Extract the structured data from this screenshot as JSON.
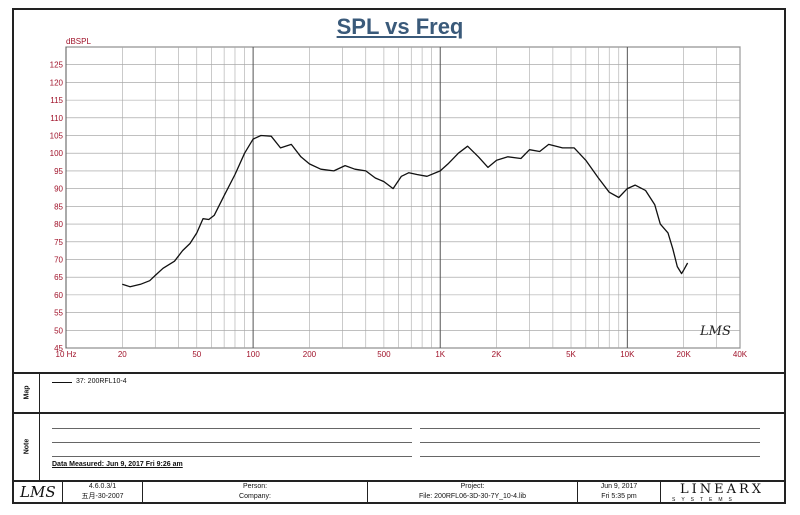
{
  "title": "SPL vs Freq",
  "chart_data": {
    "type": "line",
    "ylabel": "dBSPL",
    "xscale": "log",
    "xlim": [
      10,
      40000
    ],
    "ylim": [
      45,
      130
    ],
    "grid": true,
    "yticks": [
      "45",
      "50",
      "55",
      "60",
      "65",
      "70",
      "75",
      "80",
      "85",
      "90",
      "95",
      "100",
      "105",
      "110",
      "115",
      "120",
      "125"
    ],
    "xtick_labels": [
      {
        "f": 10,
        "label": "10 Hz"
      },
      {
        "f": 20,
        "label": "20"
      },
      {
        "f": 50,
        "label": "50"
      },
      {
        "f": 100,
        "label": "100"
      },
      {
        "f": 200,
        "label": "200"
      },
      {
        "f": 500,
        "label": "500"
      },
      {
        "f": 1000,
        "label": "1K"
      },
      {
        "f": 2000,
        "label": "2K"
      },
      {
        "f": 5000,
        "label": "5K"
      },
      {
        "f": 10000,
        "label": "10K"
      },
      {
        "f": 20000,
        "label": "20K"
      },
      {
        "f": 40000,
        "label": "40K"
      }
    ],
    "series": [
      {
        "name": "37: 200RFL10-4",
        "color": "#111111",
        "points": [
          [
            20,
            63
          ],
          [
            22,
            62.3
          ],
          [
            25,
            63
          ],
          [
            28,
            64
          ],
          [
            30,
            65.5
          ],
          [
            33,
            67.5
          ],
          [
            38,
            69.5
          ],
          [
            42,
            72.5
          ],
          [
            46,
            74.5
          ],
          [
            50,
            77.5
          ],
          [
            54,
            81.5
          ],
          [
            58,
            81.3
          ],
          [
            62,
            82.5
          ],
          [
            70,
            88
          ],
          [
            80,
            94
          ],
          [
            90,
            100
          ],
          [
            100,
            104
          ],
          [
            110,
            105
          ],
          [
            125,
            104.8
          ],
          [
            140,
            101.5
          ],
          [
            160,
            102.5
          ],
          [
            180,
            99
          ],
          [
            200,
            97
          ],
          [
            230,
            95.5
          ],
          [
            270,
            95
          ],
          [
            310,
            96.5
          ],
          [
            350,
            95.5
          ],
          [
            400,
            95
          ],
          [
            450,
            93
          ],
          [
            500,
            92
          ],
          [
            560,
            90
          ],
          [
            620,
            93.5
          ],
          [
            680,
            94.5
          ],
          [
            750,
            94
          ],
          [
            850,
            93.5
          ],
          [
            1000,
            95
          ],
          [
            1100,
            97
          ],
          [
            1250,
            100
          ],
          [
            1400,
            102
          ],
          [
            1600,
            99
          ],
          [
            1800,
            96
          ],
          [
            2000,
            98
          ],
          [
            2300,
            99
          ],
          [
            2700,
            98.5
          ],
          [
            3000,
            101
          ],
          [
            3400,
            100.5
          ],
          [
            3800,
            102.5
          ],
          [
            4500,
            101.5
          ],
          [
            5200,
            101.5
          ],
          [
            6000,
            98
          ],
          [
            7000,
            93
          ],
          [
            8000,
            89
          ],
          [
            9000,
            87.5
          ],
          [
            10000,
            90
          ],
          [
            11000,
            91
          ],
          [
            12500,
            89.5
          ],
          [
            14000,
            85.5
          ],
          [
            15000,
            80
          ],
          [
            16500,
            77.5
          ],
          [
            17500,
            73
          ],
          [
            18500,
            68
          ],
          [
            19500,
            66
          ],
          [
            20000,
            67
          ],
          [
            21000,
            69
          ]
        ]
      }
    ]
  },
  "signature": "LMS",
  "legend": {
    "label": "Map",
    "entry": "37: 200RFL10-4"
  },
  "notes": {
    "label": "Note",
    "date_measured": "Data Measured: Jun 9, 2017  Fri  9:26 am"
  },
  "footer": {
    "logo": "LMS",
    "version": "4.6.0.3/1",
    "version_date": "五月-30-2007",
    "person_label": "Person:",
    "company_label": "Company:",
    "project_label": "Project:",
    "file": "File: 200RFL06-3D-30-7Y_10-4.lib",
    "date": "Jun 9, 2017",
    "time": "Fri  5:35 pm",
    "brand": "LINEARX",
    "brand_sub": "SYSTEMS"
  }
}
